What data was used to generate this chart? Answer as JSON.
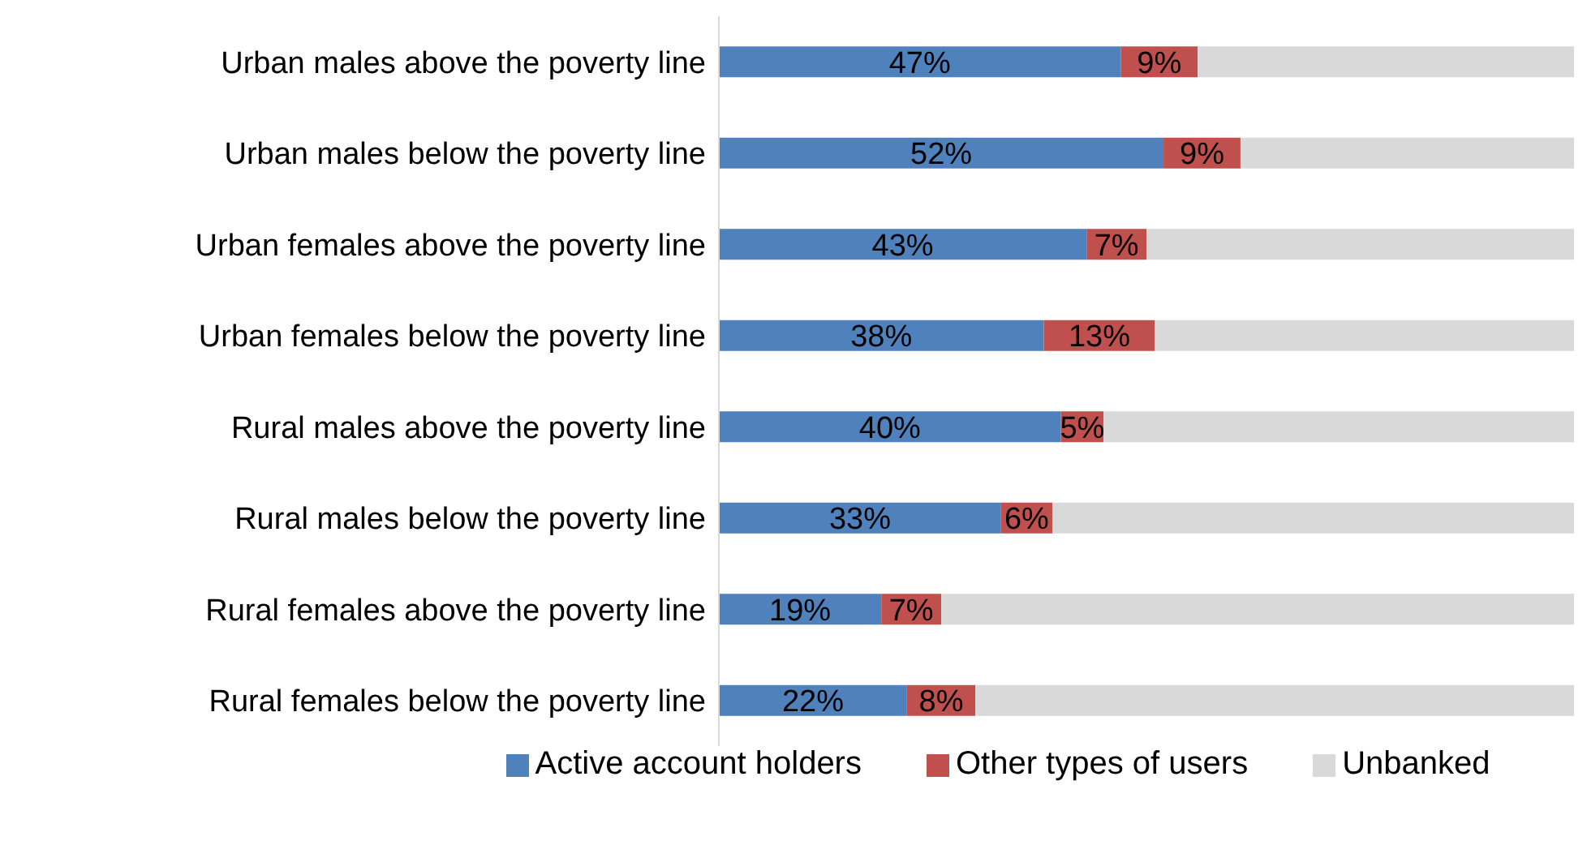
{
  "chart_data": {
    "type": "bar",
    "orientation": "horizontal",
    "stacked": true,
    "categories": [
      "Urban males above the poverty line",
      "Urban males below the poverty line",
      "Urban females above the poverty line",
      "Urban females below the poverty line",
      "Rural males above the poverty line",
      "Rural males below the poverty line",
      "Rural females above the poverty line",
      "Rural females below the poverty line"
    ],
    "xlim": [
      0,
      100
    ],
    "tick_labels": "y",
    "legend": "bottom",
    "series": [
      {
        "name": "Active account holders",
        "color": "#4f81bd",
        "values": [
          47,
          52,
          43,
          38,
          40,
          33,
          19,
          22
        ],
        "value_labels": [
          "47%",
          "52%",
          "43%",
          "38%",
          "40%",
          "33%",
          "19%",
          "22%"
        ]
      },
      {
        "name": "Other types of users",
        "color": "#c0504d",
        "values": [
          9,
          9,
          7,
          13,
          5,
          6,
          7,
          8
        ],
        "value_labels": [
          "9%",
          "9%",
          "7%",
          "13%",
          "5%",
          "6%",
          "7%",
          "8%"
        ]
      },
      {
        "name": "Unbanked",
        "color": "#d9d9d9",
        "values": [
          44,
          39,
          50,
          49,
          55,
          61,
          74,
          70
        ]
      }
    ]
  }
}
